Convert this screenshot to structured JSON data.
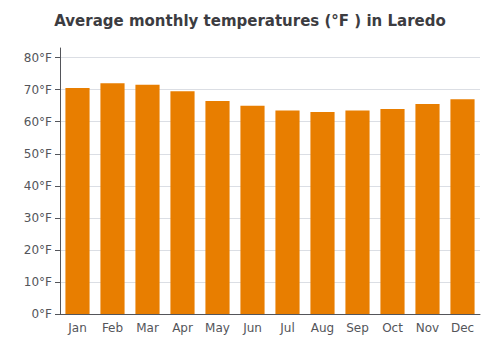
{
  "chart_data": {
    "type": "bar",
    "title": "Average monthly temperatures (°F ) in Laredo",
    "categories": [
      "Jan",
      "Feb",
      "Mar",
      "Apr",
      "May",
      "Jun",
      "Jul",
      "Aug",
      "Sep",
      "Oct",
      "Nov",
      "Dec"
    ],
    "values": [
      70.5,
      72.0,
      71.5,
      69.5,
      66.5,
      65.0,
      63.5,
      63.0,
      63.5,
      64.0,
      65.5,
      67.0
    ],
    "color": "#E87E00",
    "ylim": [
      0,
      83
    ],
    "yticks": [
      {
        "value": 0,
        "label": "0°F"
      },
      {
        "value": 10,
        "label": "10°F"
      },
      {
        "value": 20,
        "label": "20°F"
      },
      {
        "value": 30,
        "label": "30°F"
      },
      {
        "value": 40,
        "label": "40°F"
      },
      {
        "value": 50,
        "label": "50°F"
      },
      {
        "value": 60,
        "label": "60°F"
      },
      {
        "value": 70,
        "label": "70°F"
      },
      {
        "value": 80,
        "label": "80°F"
      }
    ],
    "grid": true
  }
}
